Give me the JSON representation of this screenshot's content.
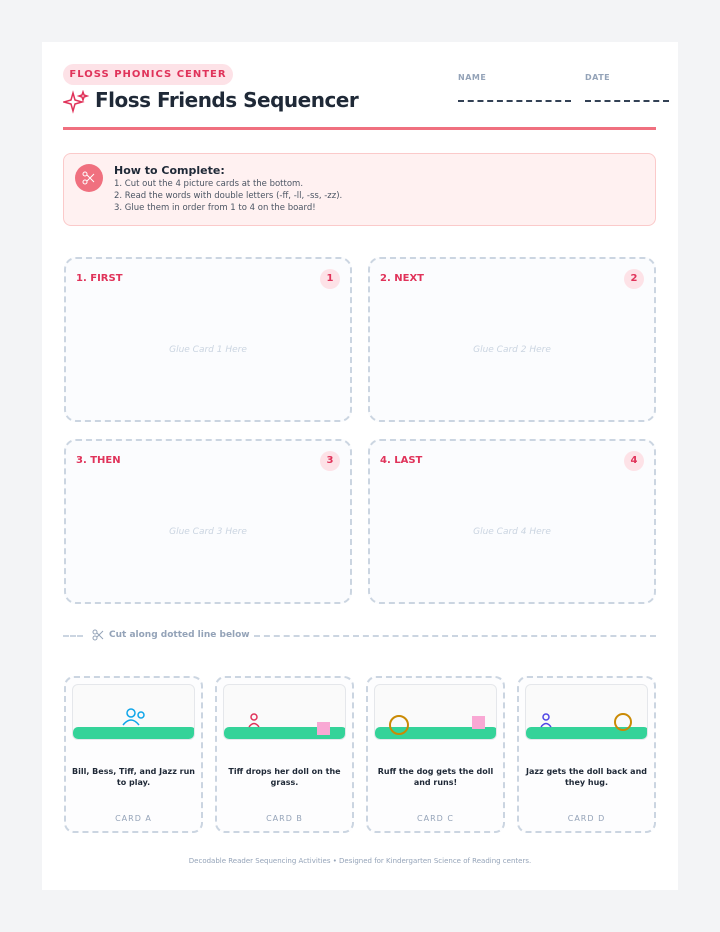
{
  "header": {
    "badge": "FLOSS PHONICS CENTER",
    "title": "Floss Friends Sequencer",
    "name_label": "NAME",
    "date_label": "DATE"
  },
  "instructions": {
    "title": "How to Complete:",
    "steps": [
      "1. Cut out the 4 picture cards at the bottom.",
      "2. Read the words with double letters (-ff, -ll, -ss, -zz).",
      "3. Glue them in order from 1 to 4 on the board!"
    ]
  },
  "board": {
    "slots": [
      {
        "label": "1. FIRST",
        "number": "1",
        "placeholder": "Glue Card 1 Here"
      },
      {
        "label": "2. NEXT",
        "number": "2",
        "placeholder": "Glue Card 2 Here"
      },
      {
        "label": "3. THEN",
        "number": "3",
        "placeholder": "Glue Card 3 Here"
      },
      {
        "label": "4. LAST",
        "number": "4",
        "placeholder": "Glue Card 4 Here"
      }
    ]
  },
  "cut_line": "Cut along dotted line below",
  "cards": [
    {
      "caption": "Bill, Bess, Tiff, and Jazz run to play.",
      "label": "CARD A"
    },
    {
      "caption": "Tiff drops her doll on the grass.",
      "label": "CARD B"
    },
    {
      "caption": "Ruff the dog gets the doll and runs!",
      "label": "CARD C"
    },
    {
      "caption": "Jazz gets the doll back and they hug.",
      "label": "CARD D"
    }
  ],
  "footer": "Decodable Reader Sequencing Activities • Designed for Kindergarten Science of Reading centers."
}
